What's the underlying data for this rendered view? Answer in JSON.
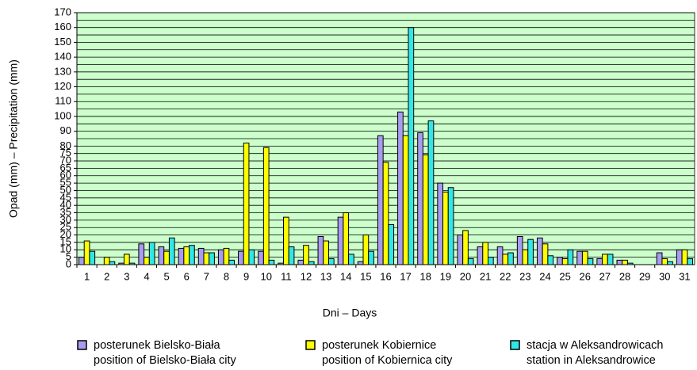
{
  "chart_data": {
    "type": "bar",
    "xlabel": "Dni – Days",
    "ylabel": "Opad (mm) – Precipitation (mm)",
    "categories": [
      "1",
      "2",
      "3",
      "4",
      "5",
      "6",
      "7",
      "8",
      "9",
      "10",
      "11",
      "12",
      "13",
      "14",
      "15",
      "16",
      "17",
      "18",
      "19",
      "20",
      "21",
      "22",
      "23",
      "24",
      "25",
      "26",
      "27",
      "28",
      "29",
      "30",
      "31"
    ],
    "series": [
      {
        "name": "posterunek Bielsko-Biała",
        "name_en": "position of Bielsko-Biała city",
        "color": "#a89cf2",
        "values": [
          5,
          0,
          1,
          14,
          12,
          11,
          11,
          10,
          9,
          9,
          1,
          3,
          19,
          32,
          2,
          87,
          103,
          89,
          55,
          20,
          12,
          12,
          19,
          18,
          5,
          9,
          4,
          3,
          0,
          8,
          10
        ]
      },
      {
        "name": "posterunek Kobiernice",
        "name_en": "position of Kobiernica city",
        "color": "#ffff00",
        "values": [
          16,
          5,
          7,
          5,
          9,
          12,
          8,
          11,
          82,
          79,
          32,
          13,
          16,
          35,
          20,
          69,
          87,
          74,
          49,
          23,
          15,
          7,
          10,
          14,
          4,
          9,
          7,
          3,
          0,
          4,
          10
        ]
      },
      {
        "name": "stacja w Aleksandrowicach",
        "name_en": "station in Aleksandrowice",
        "color": "#33e6e6",
        "values": [
          9,
          2,
          1,
          15,
          18,
          13,
          8,
          3,
          10,
          3,
          12,
          2,
          4,
          7,
          9,
          27,
          160,
          97,
          52,
          4,
          5,
          8,
          17,
          6,
          10,
          4,
          7,
          1,
          0,
          2,
          4
        ]
      }
    ],
    "ylim": [
      0,
      170
    ],
    "yticks": [
      0,
      5,
      10,
      15,
      20,
      25,
      30,
      35,
      40,
      45,
      50,
      55,
      60,
      65,
      70,
      75,
      80,
      90,
      100,
      110,
      120,
      130,
      140,
      150,
      160,
      170
    ],
    "grid_lines": [
      0,
      5,
      10,
      15,
      20,
      25,
      30,
      35,
      40,
      45,
      50,
      55,
      60,
      65,
      70,
      75,
      80,
      85,
      90,
      95,
      100,
      105,
      110,
      115,
      120,
      125,
      130,
      135,
      140,
      145,
      150,
      155,
      160,
      165,
      170
    ],
    "grid": true,
    "plot_background": "#ccffcc"
  }
}
